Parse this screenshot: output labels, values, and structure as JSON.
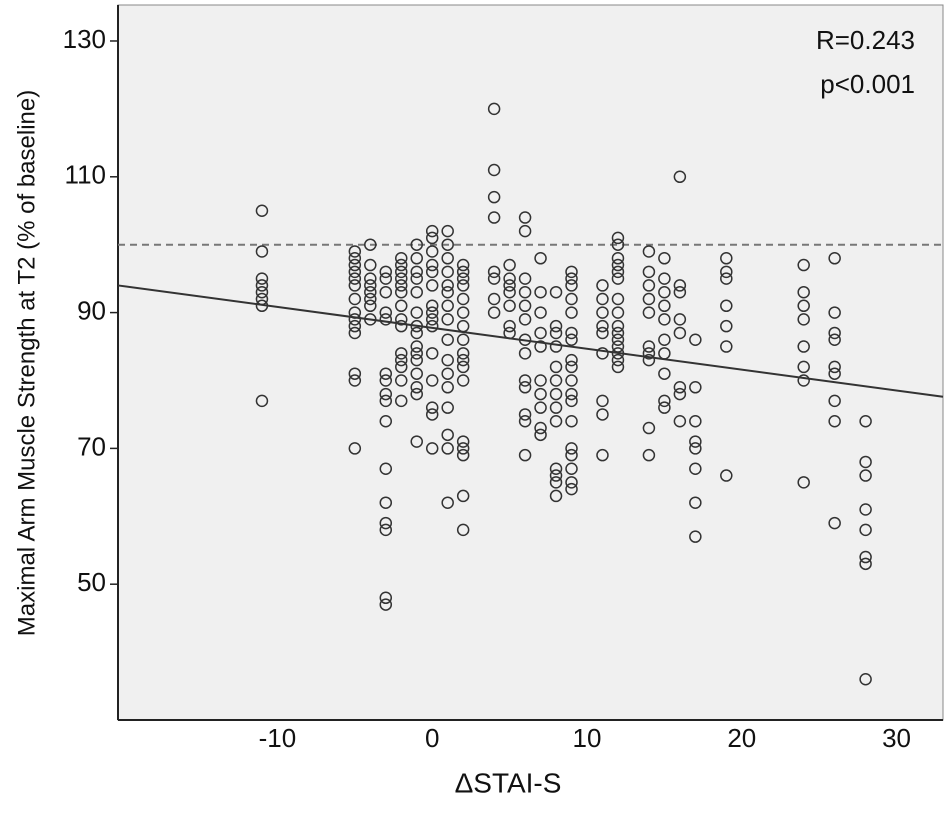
{
  "chart_data": {
    "type": "scatter",
    "xlabel": "ΔSTAI-S",
    "ylabel": "Maximal Arm Muscle Strength at T2 (% of baseline)",
    "annotations": [
      "R=0.243",
      "p<0.001"
    ],
    "xlim": [
      -20.3,
      33
    ],
    "ylim": [
      30,
      135.3
    ],
    "xticks": [
      -10,
      0,
      10,
      20,
      30
    ],
    "yticks": [
      50,
      70,
      90,
      110,
      130
    ],
    "color": "#333333",
    "reference_y": 100,
    "trend_line": {
      "x": [
        -20.3,
        33
      ],
      "y": [
        94,
        77.6
      ]
    },
    "points": [
      [
        -11,
        105
      ],
      [
        -11,
        99
      ],
      [
        -11,
        95
      ],
      [
        -11,
        94
      ],
      [
        -11,
        93
      ],
      [
        -11,
        92
      ],
      [
        -11,
        91
      ],
      [
        -11,
        77
      ],
      [
        -5,
        99
      ],
      [
        -5,
        98
      ],
      [
        -5,
        97
      ],
      [
        -5,
        96
      ],
      [
        -5,
        95
      ],
      [
        -5,
        94
      ],
      [
        -5,
        92
      ],
      [
        -5,
        90
      ],
      [
        -5,
        89
      ],
      [
        -5,
        88
      ],
      [
        -5,
        87
      ],
      [
        -5,
        81
      ],
      [
        -5,
        80
      ],
      [
        -5,
        70
      ],
      [
        -4,
        100
      ],
      [
        -4,
        97
      ],
      [
        -4,
        95
      ],
      [
        -4,
        94
      ],
      [
        -4,
        93
      ],
      [
        -4,
        92
      ],
      [
        -4,
        91
      ],
      [
        -4,
        89
      ],
      [
        -3,
        96
      ],
      [
        -3,
        95
      ],
      [
        -3,
        93
      ],
      [
        -3,
        90
      ],
      [
        -3,
        89
      ],
      [
        -3,
        81
      ],
      [
        -3,
        80
      ],
      [
        -3,
        78
      ],
      [
        -3,
        77
      ],
      [
        -3,
        74
      ],
      [
        -3,
        67
      ],
      [
        -3,
        62
      ],
      [
        -3,
        59
      ],
      [
        -3,
        58
      ],
      [
        -3,
        48
      ],
      [
        -3,
        47
      ],
      [
        -2,
        98
      ],
      [
        -2,
        97
      ],
      [
        -2,
        96
      ],
      [
        -2,
        95
      ],
      [
        -2,
        94
      ],
      [
        -2,
        93
      ],
      [
        -2,
        91
      ],
      [
        -2,
        89
      ],
      [
        -2,
        88
      ],
      [
        -2,
        84
      ],
      [
        -2,
        83
      ],
      [
        -2,
        82
      ],
      [
        -2,
        80
      ],
      [
        -2,
        77
      ],
      [
        -1,
        100
      ],
      [
        -1,
        98
      ],
      [
        -1,
        96
      ],
      [
        -1,
        95
      ],
      [
        -1,
        93
      ],
      [
        -1,
        90
      ],
      [
        -1,
        88
      ],
      [
        -1,
        87
      ],
      [
        -1,
        85
      ],
      [
        -1,
        84
      ],
      [
        -1,
        83
      ],
      [
        -1,
        81
      ],
      [
        -1,
        79
      ],
      [
        -1,
        78
      ],
      [
        -1,
        71
      ],
      [
        0,
        102
      ],
      [
        0,
        101
      ],
      [
        0,
        99
      ],
      [
        0,
        97
      ],
      [
        0,
        96
      ],
      [
        0,
        94
      ],
      [
        0,
        91
      ],
      [
        0,
        90
      ],
      [
        0,
        89
      ],
      [
        0,
        88
      ],
      [
        0,
        84
      ],
      [
        0,
        80
      ],
      [
        0,
        76
      ],
      [
        0,
        75
      ],
      [
        0,
        70
      ],
      [
        1,
        102
      ],
      [
        1,
        100
      ],
      [
        1,
        98
      ],
      [
        1,
        96
      ],
      [
        1,
        94
      ],
      [
        1,
        93
      ],
      [
        1,
        91
      ],
      [
        1,
        89
      ],
      [
        1,
        86
      ],
      [
        1,
        83
      ],
      [
        1,
        81
      ],
      [
        1,
        79
      ],
      [
        1,
        76
      ],
      [
        1,
        72
      ],
      [
        1,
        70
      ],
      [
        1,
        62
      ],
      [
        2,
        97
      ],
      [
        2,
        96
      ],
      [
        2,
        95
      ],
      [
        2,
        94
      ],
      [
        2,
        92
      ],
      [
        2,
        90
      ],
      [
        2,
        88
      ],
      [
        2,
        86
      ],
      [
        2,
        84
      ],
      [
        2,
        83
      ],
      [
        2,
        82
      ],
      [
        2,
        80
      ],
      [
        2,
        71
      ],
      [
        2,
        70
      ],
      [
        2,
        69
      ],
      [
        2,
        63
      ],
      [
        2,
        58
      ],
      [
        4,
        120
      ],
      [
        4,
        111
      ],
      [
        4,
        107
      ],
      [
        4,
        104
      ],
      [
        4,
        96
      ],
      [
        4,
        95
      ],
      [
        4,
        92
      ],
      [
        4,
        90
      ],
      [
        5,
        97
      ],
      [
        5,
        95
      ],
      [
        5,
        94
      ],
      [
        5,
        93
      ],
      [
        5,
        91
      ],
      [
        5,
        88
      ],
      [
        5,
        87
      ],
      [
        6,
        104
      ],
      [
        6,
        102
      ],
      [
        6,
        95
      ],
      [
        6,
        93
      ],
      [
        6,
        91
      ],
      [
        6,
        89
      ],
      [
        6,
        86
      ],
      [
        6,
        84
      ],
      [
        6,
        80
      ],
      [
        6,
        79
      ],
      [
        6,
        75
      ],
      [
        6,
        74
      ],
      [
        6,
        69
      ],
      [
        7,
        98
      ],
      [
        7,
        93
      ],
      [
        7,
        90
      ],
      [
        7,
        87
      ],
      [
        7,
        85
      ],
      [
        7,
        80
      ],
      [
        7,
        78
      ],
      [
        7,
        76
      ],
      [
        7,
        73
      ],
      [
        7,
        72
      ],
      [
        8,
        93
      ],
      [
        8,
        88
      ],
      [
        8,
        87
      ],
      [
        8,
        85
      ],
      [
        8,
        82
      ],
      [
        8,
        80
      ],
      [
        8,
        78
      ],
      [
        8,
        76
      ],
      [
        8,
        74
      ],
      [
        8,
        67
      ],
      [
        8,
        66
      ],
      [
        8,
        65
      ],
      [
        8,
        63
      ],
      [
        9,
        96
      ],
      [
        9,
        95
      ],
      [
        9,
        94
      ],
      [
        9,
        92
      ],
      [
        9,
        90
      ],
      [
        9,
        87
      ],
      [
        9,
        86
      ],
      [
        9,
        83
      ],
      [
        9,
        82
      ],
      [
        9,
        80
      ],
      [
        9,
        78
      ],
      [
        9,
        77
      ],
      [
        9,
        74
      ],
      [
        9,
        70
      ],
      [
        9,
        69
      ],
      [
        9,
        67
      ],
      [
        9,
        65
      ],
      [
        9,
        64
      ],
      [
        11,
        94
      ],
      [
        11,
        92
      ],
      [
        11,
        90
      ],
      [
        11,
        88
      ],
      [
        11,
        87
      ],
      [
        11,
        84
      ],
      [
        11,
        77
      ],
      [
        11,
        75
      ],
      [
        11,
        69
      ],
      [
        12,
        101
      ],
      [
        12,
        100
      ],
      [
        12,
        98
      ],
      [
        12,
        97
      ],
      [
        12,
        96
      ],
      [
        12,
        95
      ],
      [
        12,
        92
      ],
      [
        12,
        90
      ],
      [
        12,
        88
      ],
      [
        12,
        87
      ],
      [
        12,
        86
      ],
      [
        12,
        85
      ],
      [
        12,
        84
      ],
      [
        12,
        83
      ],
      [
        12,
        82
      ],
      [
        14,
        99
      ],
      [
        14,
        96
      ],
      [
        14,
        94
      ],
      [
        14,
        92
      ],
      [
        14,
        90
      ],
      [
        14,
        85
      ],
      [
        14,
        84
      ],
      [
        14,
        83
      ],
      [
        14,
        73
      ],
      [
        14,
        69
      ],
      [
        15,
        98
      ],
      [
        15,
        95
      ],
      [
        15,
        93
      ],
      [
        15,
        91
      ],
      [
        15,
        89
      ],
      [
        15,
        86
      ],
      [
        15,
        84
      ],
      [
        15,
        81
      ],
      [
        15,
        77
      ],
      [
        15,
        76
      ],
      [
        16,
        110
      ],
      [
        16,
        94
      ],
      [
        16,
        93
      ],
      [
        16,
        89
      ],
      [
        16,
        87
      ],
      [
        16,
        79
      ],
      [
        16,
        78
      ],
      [
        16,
        74
      ],
      [
        17,
        86
      ],
      [
        17,
        79
      ],
      [
        17,
        74
      ],
      [
        17,
        71
      ],
      [
        17,
        70
      ],
      [
        17,
        67
      ],
      [
        17,
        62
      ],
      [
        17,
        57
      ],
      [
        19,
        98
      ],
      [
        19,
        96
      ],
      [
        19,
        95
      ],
      [
        19,
        91
      ],
      [
        19,
        88
      ],
      [
        19,
        85
      ],
      [
        19,
        66
      ],
      [
        24,
        97
      ],
      [
        24,
        93
      ],
      [
        24,
        91
      ],
      [
        24,
        89
      ],
      [
        24,
        85
      ],
      [
        24,
        82
      ],
      [
        24,
        80
      ],
      [
        24,
        65
      ],
      [
        26,
        98
      ],
      [
        26,
        90
      ],
      [
        26,
        87
      ],
      [
        26,
        86
      ],
      [
        26,
        82
      ],
      [
        26,
        81
      ],
      [
        26,
        77
      ],
      [
        26,
        74
      ],
      [
        26,
        59
      ],
      [
        28,
        74
      ],
      [
        28,
        68
      ],
      [
        28,
        66
      ],
      [
        28,
        61
      ],
      [
        28,
        58
      ],
      [
        28,
        54
      ],
      [
        28,
        53
      ],
      [
        28,
        36
      ]
    ]
  }
}
